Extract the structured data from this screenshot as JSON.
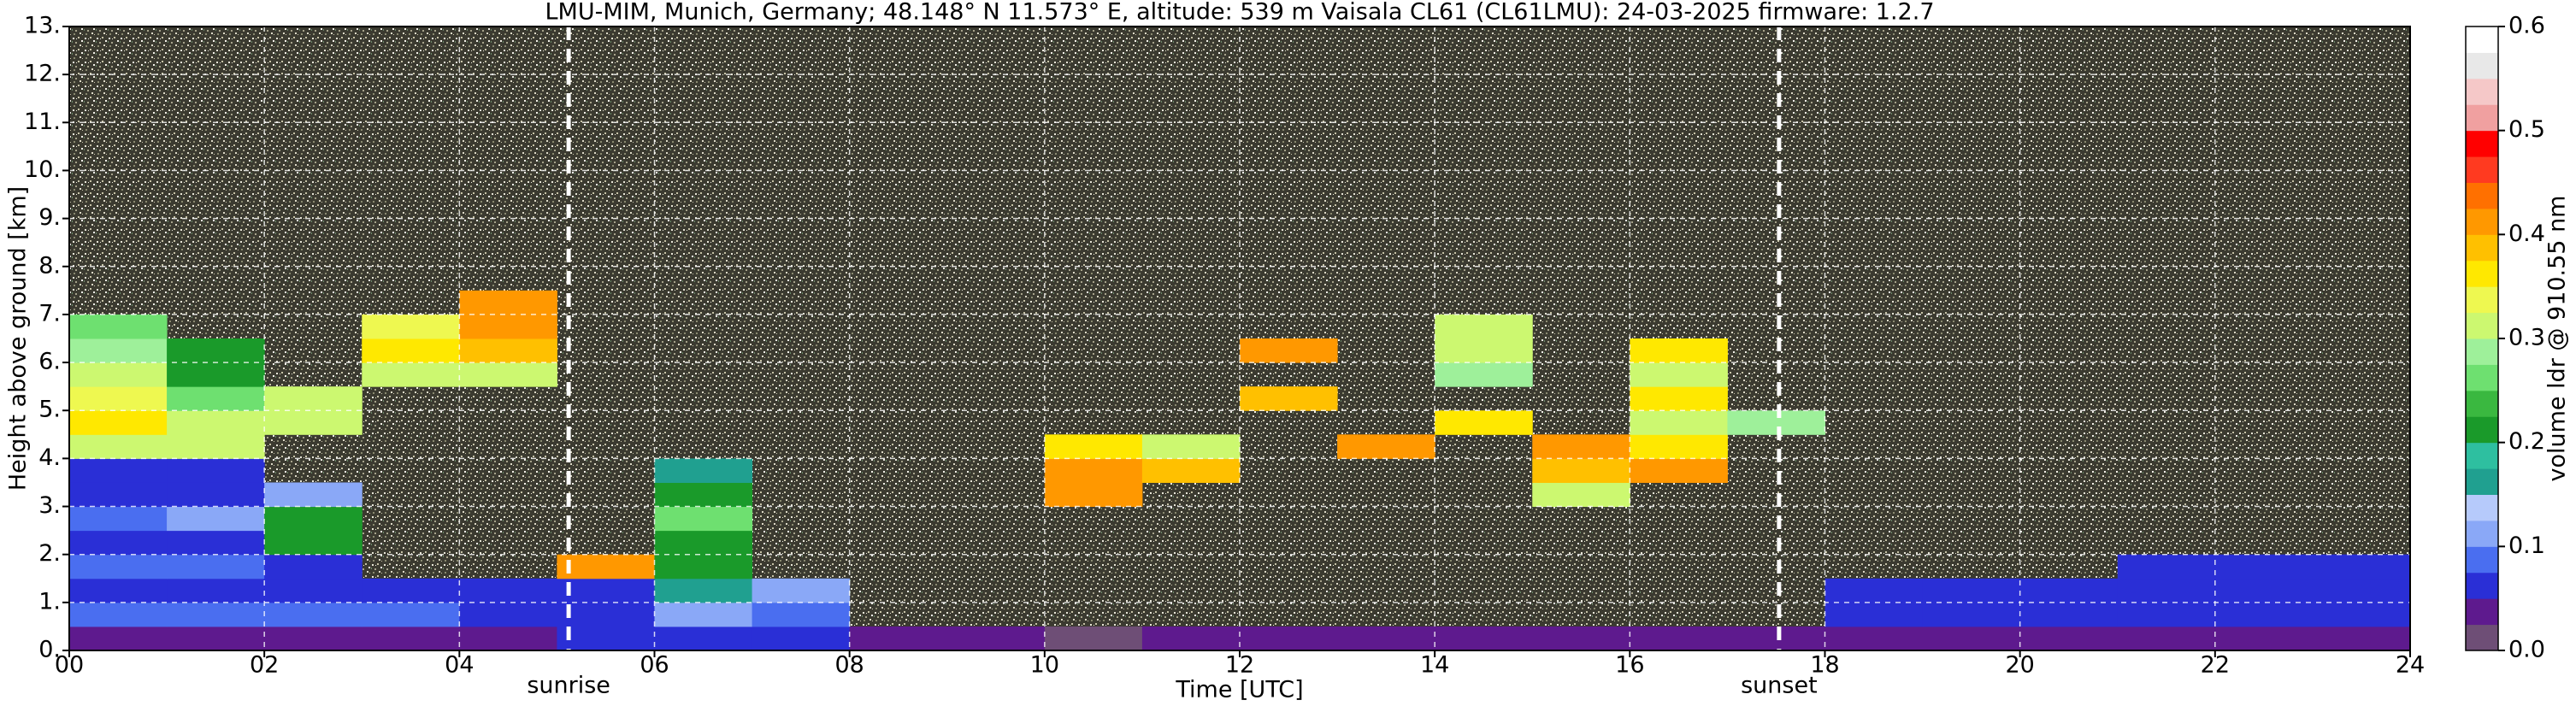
{
  "chart_data": {
    "type": "heatmap",
    "title": "LMU-MIM, Munich, Germany; 48.148° N 11.573° E, altitude: 539 m    Vaisala CL61 (CL61LMU): 24-03-2025    firmware: 1.2.7",
    "xlabel": "Time [UTC]",
    "ylabel": "Height above ground [km]",
    "colorbar_label": "volume ldr @ 910.55 nm",
    "xlim": [
      0,
      24
    ],
    "xticks": [
      {
        "value": 0,
        "label": "00"
      },
      {
        "value": 2,
        "label": "02"
      },
      {
        "value": 4,
        "label": "04"
      },
      {
        "value": 6,
        "label": "06"
      },
      {
        "value": 8,
        "label": "08"
      },
      {
        "value": 10,
        "label": "10"
      },
      {
        "value": 12,
        "label": "12"
      },
      {
        "value": 14,
        "label": "14"
      },
      {
        "value": 16,
        "label": "16"
      },
      {
        "value": 18,
        "label": "18"
      },
      {
        "value": 20,
        "label": "20"
      },
      {
        "value": 22,
        "label": "22"
      },
      {
        "value": 24,
        "label": "24"
      }
    ],
    "ylim": [
      0,
      13
    ],
    "yticks": [
      {
        "value": 0,
        "label": "0."
      },
      {
        "value": 1,
        "label": "1."
      },
      {
        "value": 2,
        "label": "2."
      },
      {
        "value": 3,
        "label": "3."
      },
      {
        "value": 4,
        "label": "4."
      },
      {
        "value": 5,
        "label": "5."
      },
      {
        "value": 6,
        "label": "6."
      },
      {
        "value": 7,
        "label": "7."
      },
      {
        "value": 8,
        "label": "8."
      },
      {
        "value": 9,
        "label": "9."
      },
      {
        "value": 10,
        "label": "10."
      },
      {
        "value": 11,
        "label": "11."
      },
      {
        "value": 12,
        "label": "12."
      },
      {
        "value": 13,
        "label": "13."
      }
    ],
    "grid": true,
    "clim": [
      0,
      0.6
    ],
    "cticks": [
      {
        "value": 0,
        "label": "0.0"
      },
      {
        "value": 0.1,
        "label": "0.1"
      },
      {
        "value": 0.2,
        "label": "0.2"
      },
      {
        "value": 0.3,
        "label": "0.3"
      },
      {
        "value": 0.4,
        "label": "0.4"
      },
      {
        "value": 0.5,
        "label": "0.5"
      },
      {
        "value": 0.6,
        "label": "0.6"
      }
    ],
    "colors": [
      "#6e4e76",
      "#5e1a8e",
      "#2a2fd6",
      "#4a6ef0",
      "#8aa8f7",
      "#b6cafb",
      "#20a090",
      "#2ebfa0",
      "#1a9a2a",
      "#3ab840",
      "#6ee070",
      "#9ef09a",
      "#ccf870",
      "#eef850",
      "#ffe800",
      "#ffc000",
      "#ff9800",
      "#ff7000",
      "#ff3a20",
      "#ff0000",
      "#f0a0a0",
      "#f5c8c8",
      "#e8e8e8",
      "#ffffff"
    ],
    "markers": [
      {
        "label": "sunrise",
        "x": 5.12
      },
      {
        "label": "sunset",
        "x": 17.53
      }
    ],
    "x_edges": [
      0,
      1,
      2,
      3,
      4,
      5,
      6,
      7,
      8,
      9,
      10,
      11,
      12,
      13,
      14,
      15,
      16,
      17,
      18,
      19,
      20,
      21,
      22,
      23,
      24
    ],
    "y_edges": [
      0,
      0.5,
      1,
      1.5,
      2,
      2.5,
      3,
      3.5,
      4,
      4.5,
      5,
      5.5,
      6,
      6.5,
      7,
      7.5,
      8,
      8.5,
      9,
      9.5,
      10,
      10.5,
      11,
      11.5,
      12,
      12.5,
      13
    ],
    "values": [
      [
        0.03,
        0.03,
        0.03,
        0.03,
        0.03,
        0.05,
        0.07,
        0.05,
        0.03,
        0.03,
        0.02,
        0.03,
        0.03,
        0.03,
        0.03,
        0.03,
        0.03,
        0.03,
        0.03,
        0.03,
        0.03,
        0.03,
        0.03,
        0.03
      ],
      [
        0.08,
        0.08,
        0.08,
        0.08,
        0.07,
        0.07,
        0.1,
        0.08,
        null,
        null,
        null,
        null,
        null,
        null,
        null,
        null,
        null,
        null,
        0.05,
        0.05,
        0.05,
        0.05,
        0.05,
        0.05
      ],
      [
        0.07,
        0.07,
        0.06,
        0.06,
        0.05,
        0.07,
        0.15,
        0.12,
        null,
        null,
        null,
        null,
        null,
        null,
        null,
        null,
        null,
        null,
        0.06,
        0.06,
        0.06,
        0.07,
        0.07,
        0.07
      ],
      [
        0.08,
        0.08,
        0.07,
        null,
        null,
        0.4,
        0.2,
        null,
        null,
        null,
        null,
        null,
        null,
        null,
        null,
        null,
        null,
        null,
        null,
        null,
        null,
        0.07,
        0.07,
        0.07
      ],
      [
        0.07,
        0.07,
        0.2,
        null,
        null,
        null,
        0.22,
        null,
        null,
        null,
        null,
        null,
        null,
        null,
        null,
        null,
        null,
        null,
        null,
        null,
        null,
        null,
        null,
        null
      ],
      [
        0.08,
        0.1,
        0.2,
        null,
        null,
        null,
        0.25,
        null,
        null,
        null,
        null,
        null,
        null,
        null,
        null,
        null,
        null,
        null,
        null,
        null,
        null,
        null,
        null,
        null
      ],
      [
        0.07,
        0.07,
        0.12,
        null,
        null,
        null,
        0.22,
        null,
        null,
        null,
        0.4,
        null,
        null,
        null,
        null,
        0.3,
        null,
        null,
        null,
        null,
        null,
        null,
        null,
        null
      ],
      [
        0.06,
        0.06,
        null,
        null,
        null,
        null,
        0.15,
        null,
        null,
        null,
        0.42,
        0.38,
        null,
        null,
        null,
        0.38,
        0.4,
        null,
        null,
        null,
        null,
        null,
        null,
        null
      ],
      [
        0.3,
        0.32,
        null,
        null,
        null,
        null,
        null,
        null,
        null,
        null,
        0.36,
        0.3,
        null,
        0.4,
        null,
        0.4,
        0.35,
        null,
        null,
        null,
        null,
        null,
        null,
        null
      ],
      [
        0.35,
        0.3,
        0.3,
        null,
        null,
        null,
        null,
        null,
        null,
        null,
        null,
        null,
        null,
        null,
        0.35,
        null,
        0.3,
        0.28,
        null,
        null,
        null,
        null,
        null,
        null
      ],
      [
        0.33,
        0.25,
        0.3,
        null,
        null,
        null,
        null,
        null,
        null,
        null,
        null,
        null,
        0.38,
        null,
        null,
        null,
        0.35,
        null,
        null,
        null,
        null,
        null,
        null,
        null
      ],
      [
        0.3,
        0.22,
        null,
        0.3,
        0.32,
        null,
        null,
        null,
        null,
        null,
        null,
        null,
        null,
        null,
        0.28,
        null,
        0.3,
        null,
        null,
        null,
        null,
        null,
        null,
        null
      ],
      [
        0.28,
        0.22,
        null,
        0.35,
        0.38,
        null,
        null,
        null,
        null,
        null,
        null,
        null,
        0.4,
        null,
        0.3,
        null,
        0.35,
        null,
        null,
        null,
        null,
        null,
        null,
        null
      ],
      [
        0.25,
        null,
        null,
        0.33,
        0.4,
        null,
        null,
        null,
        null,
        null,
        null,
        null,
        null,
        null,
        0.3,
        null,
        null,
        null,
        null,
        null,
        null,
        null,
        null,
        null
      ],
      [
        null,
        null,
        null,
        null,
        0.4,
        null,
        null,
        null,
        null,
        null,
        null,
        null,
        null,
        null,
        null,
        null,
        null,
        null,
        null,
        null,
        null,
        null,
        null,
        null
      ],
      [
        null,
        null,
        null,
        null,
        null,
        null,
        null,
        null,
        null,
        null,
        null,
        null,
        null,
        null,
        null,
        null,
        null,
        null,
        null,
        null,
        null,
        null,
        null,
        null
      ],
      [
        null,
        null,
        null,
        null,
        null,
        null,
        null,
        null,
        null,
        null,
        null,
        null,
        null,
        null,
        null,
        null,
        null,
        null,
        null,
        null,
        null,
        null,
        null,
        null
      ],
      [
        null,
        null,
        null,
        null,
        null,
        null,
        null,
        null,
        null,
        null,
        null,
        null,
        null,
        null,
        null,
        null,
        null,
        null,
        null,
        null,
        null,
        null,
        null,
        null
      ],
      [
        null,
        null,
        null,
        null,
        null,
        null,
        null,
        null,
        null,
        null,
        null,
        null,
        null,
        null,
        null,
        null,
        null,
        null,
        null,
        null,
        null,
        null,
        null,
        null
      ],
      [
        null,
        null,
        null,
        null,
        null,
        null,
        null,
        null,
        null,
        null,
        null,
        null,
        null,
        null,
        null,
        null,
        null,
        null,
        null,
        null,
        null,
        null,
        null,
        null
      ],
      [
        null,
        null,
        null,
        null,
        null,
        null,
        null,
        null,
        null,
        null,
        null,
        null,
        null,
        null,
        null,
        null,
        null,
        null,
        null,
        null,
        null,
        null,
        null,
        null
      ],
      [
        null,
        null,
        null,
        null,
        null,
        null,
        null,
        null,
        null,
        null,
        null,
        null,
        null,
        null,
        null,
        null,
        null,
        null,
        null,
        null,
        null,
        null,
        null,
        null
      ],
      [
        null,
        null,
        null,
        null,
        null,
        null,
        null,
        null,
        null,
        null,
        null,
        null,
        null,
        null,
        null,
        null,
        null,
        null,
        null,
        null,
        null,
        null,
        null,
        null
      ],
      [
        null,
        null,
        null,
        null,
        null,
        null,
        null,
        null,
        null,
        null,
        null,
        null,
        null,
        null,
        null,
        null,
        null,
        null,
        null,
        null,
        null,
        null,
        null,
        null
      ],
      [
        null,
        null,
        null,
        null,
        null,
        null,
        null,
        null,
        null,
        null,
        null,
        null,
        null,
        null,
        null,
        null,
        null,
        null,
        null,
        null,
        null,
        null,
        null,
        null
      ],
      [
        null,
        null,
        null,
        null,
        null,
        null,
        null,
        null,
        null,
        null,
        null,
        null,
        null,
        null,
        null,
        null,
        null,
        null,
        null,
        null,
        null,
        null,
        null,
        null
      ]
    ]
  }
}
